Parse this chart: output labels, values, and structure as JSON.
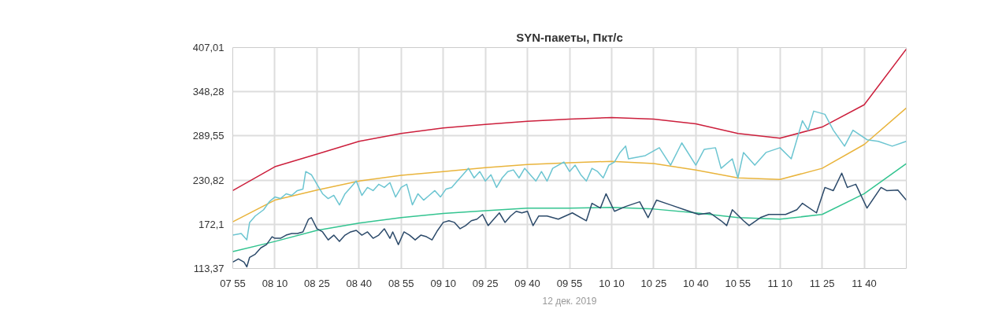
{
  "chart_data": {
    "type": "line",
    "title": "SYN-пакеты, Пкт/с",
    "xlabel": "12 дек. 2019",
    "xlim": [
      "2019-12-12T07:55",
      "2019-12-12T11:55"
    ],
    "xticks": [
      {
        "value": "2019-12-12T07:55",
        "label": "07 55"
      },
      {
        "value": "2019-12-12T08:10",
        "label": "08 10"
      },
      {
        "value": "2019-12-12T08:25",
        "label": "08 25"
      },
      {
        "value": "2019-12-12T08:40",
        "label": "08 40"
      },
      {
        "value": "2019-12-12T08:55",
        "label": "08 55"
      },
      {
        "value": "2019-12-12T09:10",
        "label": "09 10"
      },
      {
        "value": "2019-12-12T09:25",
        "label": "09 25"
      },
      {
        "value": "2019-12-12T09:40",
        "label": "09 40"
      },
      {
        "value": "2019-12-12T09:55",
        "label": "09 55"
      },
      {
        "value": "2019-12-12T10:10",
        "label": "10 10"
      },
      {
        "value": "2019-12-12T10:25",
        "label": "10 25"
      },
      {
        "value": "2019-12-12T10:40",
        "label": "10 40"
      },
      {
        "value": "2019-12-12T10:55",
        "label": "10 55"
      },
      {
        "value": "2019-12-12T11:10",
        "label": "11 10"
      },
      {
        "value": "2019-12-12T11:25",
        "label": "11 25"
      },
      {
        "value": "2019-12-12T11:40",
        "label": "11 40"
      }
    ],
    "ylim": [
      113.37,
      407.01
    ],
    "yticks": [
      {
        "value": 113.37,
        "label": "113,37"
      },
      {
        "value": 172.1,
        "label": "172,1"
      },
      {
        "value": 230.82,
        "label": "230,82"
      },
      {
        "value": 289.55,
        "label": "289,55"
      },
      {
        "value": 348.28,
        "label": "348,28"
      },
      {
        "value": 407.01,
        "label": "407,01"
      }
    ],
    "grid": true,
    "marker": "none",
    "line_style": "solid",
    "x": [
      "2019-12-12T07:55",
      "2019-12-12T08:10",
      "2019-12-12T08:25",
      "2019-12-12T08:40",
      "2019-12-12T08:55",
      "2019-12-12T09:10",
      "2019-12-12T09:25",
      "2019-12-12T09:40",
      "2019-12-12T09:55",
      "2019-12-12T10:10",
      "2019-12-12T10:25",
      "2019-12-12T10:40",
      "2019-12-12T10:55",
      "2019-12-12T11:10",
      "2019-12-12T11:25",
      "2019-12-12T11:40",
      "2019-12-12T11:55"
    ],
    "series": [
      {
        "color": "#cc1f3c",
        "values": [
          216.9,
          248.6,
          265.5,
          282.4,
          292.9,
          300.1,
          304.8,
          309.0,
          312.0,
          314.1,
          312.0,
          305.6,
          292.9,
          286.6,
          301.4,
          331.0,
          405.0
        ]
      },
      {
        "color": "#e9b43c",
        "values": [
          175.5,
          204.2,
          217.7,
          229.6,
          237.2,
          242.2,
          247.3,
          251.5,
          254.0,
          255.8,
          252.8,
          244.3,
          233.8,
          231.7,
          246.5,
          278.2,
          326.7
        ]
      },
      {
        "color": "#33c490",
        "values": [
          135.8,
          149.3,
          164.1,
          173.8,
          181.0,
          186.5,
          190.3,
          193.7,
          193.7,
          194.5,
          192.4,
          187.3,
          181.0,
          178.9,
          185.2,
          212.7,
          252.8
        ]
      },
      {
        "color": "#6cc5d1",
        "x": [
          "2019-12-12T07:55",
          "2019-12-12T07:58",
          "2019-12-12T08:00",
          "2019-12-12T08:01",
          "2019-12-12T08:03",
          "2019-12-12T08:06",
          "2019-12-12T08:08",
          "2019-12-12T08:10",
          "2019-12-12T08:12",
          "2019-12-12T08:14",
          "2019-12-12T08:16",
          "2019-12-12T08:18",
          "2019-12-12T08:20",
          "2019-12-12T08:21",
          "2019-12-12T08:23",
          "2019-12-12T08:25",
          "2019-12-12T08:27",
          "2019-12-12T08:29",
          "2019-12-12T08:31",
          "2019-12-12T08:33",
          "2019-12-12T08:35",
          "2019-12-12T08:37",
          "2019-12-12T08:39",
          "2019-12-12T08:41",
          "2019-12-12T08:43",
          "2019-12-12T08:45",
          "2019-12-12T08:47",
          "2019-12-12T08:49",
          "2019-12-12T08:51",
          "2019-12-12T08:53",
          "2019-12-12T08:55",
          "2019-12-12T08:57",
          "2019-12-12T08:59",
          "2019-12-12T09:01",
          "2019-12-12T09:03",
          "2019-12-12T09:05",
          "2019-12-12T09:07",
          "2019-12-12T09:09",
          "2019-12-12T09:11",
          "2019-12-12T09:13",
          "2019-12-12T09:15",
          "2019-12-12T09:17",
          "2019-12-12T09:19",
          "2019-12-12T09:21",
          "2019-12-12T09:23",
          "2019-12-12T09:25",
          "2019-12-12T09:27",
          "2019-12-12T09:29",
          "2019-12-12T09:31",
          "2019-12-12T09:33",
          "2019-12-12T09:35",
          "2019-12-12T09:37",
          "2019-12-12T09:39",
          "2019-12-12T09:41",
          "2019-12-12T09:43",
          "2019-12-12T09:45",
          "2019-12-12T09:47",
          "2019-12-12T09:49",
          "2019-12-12T09:51",
          "2019-12-12T09:53",
          "2019-12-12T09:55",
          "2019-12-12T09:57",
          "2019-12-12T09:59",
          "2019-12-12T10:01",
          "2019-12-12T10:03",
          "2019-12-12T10:05",
          "2019-12-12T10:07",
          "2019-12-12T10:09",
          "2019-12-12T10:11",
          "2019-12-12T10:13",
          "2019-12-12T10:15",
          "2019-12-12T10:16",
          "2019-12-12T10:22",
          "2019-12-12T10:27",
          "2019-12-12T10:31",
          "2019-12-12T10:35",
          "2019-12-12T10:40",
          "2019-12-12T10:43",
          "2019-12-12T10:47",
          "2019-12-12T10:49",
          "2019-12-12T10:53",
          "2019-12-12T10:55",
          "2019-12-12T10:57",
          "2019-12-12T11:01",
          "2019-12-12T11:05",
          "2019-12-12T11:10",
          "2019-12-12T11:14",
          "2019-12-12T11:18",
          "2019-12-12T11:20",
          "2019-12-12T11:22",
          "2019-12-12T11:26",
          "2019-12-12T11:29",
          "2019-12-12T11:33",
          "2019-12-12T11:36",
          "2019-12-12T11:41",
          "2019-12-12T11:45",
          "2019-12-12T11:50",
          "2019-12-12T11:55"
        ],
        "values": [
          157.7,
          159.9,
          151.4,
          174.6,
          183.1,
          191.5,
          202.1,
          208.4,
          206.3,
          212.7,
          210.6,
          216.9,
          219.0,
          242.2,
          238.0,
          225.3,
          212.7,
          206.3,
          210.6,
          197.9,
          212.7,
          221.1,
          229.6,
          210.6,
          221.1,
          216.9,
          225.3,
          221.1,
          227.5,
          208.4,
          221.1,
          225.3,
          197.9,
          212.7,
          204.2,
          210.6,
          216.9,
          208.4,
          219.0,
          221.1,
          229.6,
          238.0,
          246.5,
          233.8,
          242.2,
          229.6,
          238.0,
          221.1,
          233.8,
          242.2,
          244.4,
          233.8,
          246.5,
          238.0,
          229.6,
          242.2,
          229.6,
          246.5,
          250.7,
          254.9,
          242.2,
          250.7,
          238.0,
          229.6,
          246.5,
          242.2,
          233.8,
          250.7,
          254.9,
          267.6,
          276.0,
          259.1,
          263.4,
          273.9,
          250.7,
          280.3,
          250.7,
          271.8,
          273.9,
          246.5,
          259.1,
          233.8,
          267.6,
          250.7,
          267.6,
          273.9,
          259.1,
          309.8,
          297.2,
          322.5,
          318.3,
          297.2,
          276.0,
          297.2,
          284.5,
          282.4,
          276.0,
          282.4
        ]
      },
      {
        "color": "#2c4a6a",
        "x": [
          "2019-12-12T07:55",
          "2019-12-12T07:57",
          "2019-12-12T07:59",
          "2019-12-12T08:00",
          "2019-12-12T08:01",
          "2019-12-12T08:03",
          "2019-12-12T08:05",
          "2019-12-12T08:07",
          "2019-12-12T08:09",
          "2019-12-12T08:10",
          "2019-12-12T08:12",
          "2019-12-12T08:14",
          "2019-12-12T08:16",
          "2019-12-12T08:18",
          "2019-12-12T08:20",
          "2019-12-12T08:22",
          "2019-12-12T08:23",
          "2019-12-12T08:25",
          "2019-12-12T08:27",
          "2019-12-12T08:29",
          "2019-12-12T08:31",
          "2019-12-12T08:33",
          "2019-12-12T08:35",
          "2019-12-12T08:37",
          "2019-12-12T08:39",
          "2019-12-12T08:41",
          "2019-12-12T08:43",
          "2019-12-12T08:45",
          "2019-12-12T08:47",
          "2019-12-12T08:49",
          "2019-12-12T08:51",
          "2019-12-12T08:52",
          "2019-12-12T08:54",
          "2019-12-12T08:56",
          "2019-12-12T08:58",
          "2019-12-12T09:00",
          "2019-12-12T09:02",
          "2019-12-12T09:04",
          "2019-12-12T09:06",
          "2019-12-12T09:08",
          "2019-12-12T09:10",
          "2019-12-12T09:12",
          "2019-12-12T09:14",
          "2019-12-12T09:16",
          "2019-12-12T09:18",
          "2019-12-12T09:20",
          "2019-12-12T09:22",
          "2019-12-12T09:24",
          "2019-12-12T09:26",
          "2019-12-12T09:28",
          "2019-12-12T09:30",
          "2019-12-12T09:32",
          "2019-12-12T09:34",
          "2019-12-12T09:36",
          "2019-12-12T09:38",
          "2019-12-12T09:40",
          "2019-12-12T09:42",
          "2019-12-12T09:44",
          "2019-12-12T09:47",
          "2019-12-12T09:51",
          "2019-12-12T09:56",
          "2019-12-12T10:01",
          "2019-12-12T10:03",
          "2019-12-12T10:06",
          "2019-12-12T10:08",
          "2019-12-12T10:11",
          "2019-12-12T10:15",
          "2019-12-12T10:20",
          "2019-12-12T10:23",
          "2019-12-12T10:26",
          "2019-12-12T10:31",
          "2019-12-12T10:36",
          "2019-12-12T10:41",
          "2019-12-12T10:45",
          "2019-12-12T10:49",
          "2019-12-12T10:51",
          "2019-12-12T10:53",
          "2019-12-12T10:57",
          "2019-12-12T10:59",
          "2019-12-12T11:03",
          "2019-12-12T11:06",
          "2019-12-12T11:12",
          "2019-12-12T11:16",
          "2019-12-12T11:18",
          "2019-12-12T11:23",
          "2019-12-12T11:26",
          "2019-12-12T11:29",
          "2019-12-12T11:32",
          "2019-12-12T11:34",
          "2019-12-12T11:37",
          "2019-12-12T11:41",
          "2019-12-12T11:46",
          "2019-12-12T11:48",
          "2019-12-12T11:52",
          "2019-12-12T11:55"
        ],
        "values": [
          121.8,
          126.1,
          121.8,
          115.5,
          128.2,
          132.4,
          140.8,
          145.1,
          155.6,
          153.5,
          153.5,
          157.7,
          159.9,
          159.9,
          162.0,
          178.9,
          181.0,
          166.2,
          162.0,
          151.4,
          157.7,
          149.3,
          157.7,
          162.0,
          164.1,
          157.7,
          162.0,
          153.5,
          157.7,
          166.2,
          153.5,
          162.0,
          145.1,
          162.0,
          157.7,
          151.4,
          157.7,
          155.6,
          151.4,
          164.1,
          174.6,
          176.8,
          174.6,
          166.2,
          170.4,
          176.8,
          178.9,
          185.2,
          170.4,
          178.9,
          187.3,
          174.6,
          183.1,
          189.4,
          187.3,
          189.4,
          170.4,
          183.1,
          183.1,
          178.9,
          187.3,
          176.8,
          200.0,
          193.7,
          212.7,
          189.4,
          195.8,
          202.1,
          181.0,
          204.2,
          197.9,
          191.5,
          185.2,
          187.3,
          176.8,
          170.4,
          191.5,
          176.8,
          170.4,
          181.0,
          185.2,
          185.2,
          191.5,
          200.0,
          187.3,
          221.1,
          216.9,
          240.1,
          221.1,
          225.3,
          193.7,
          221.1,
          216.9,
          217.6,
          204.2
        ]
      }
    ]
  }
}
